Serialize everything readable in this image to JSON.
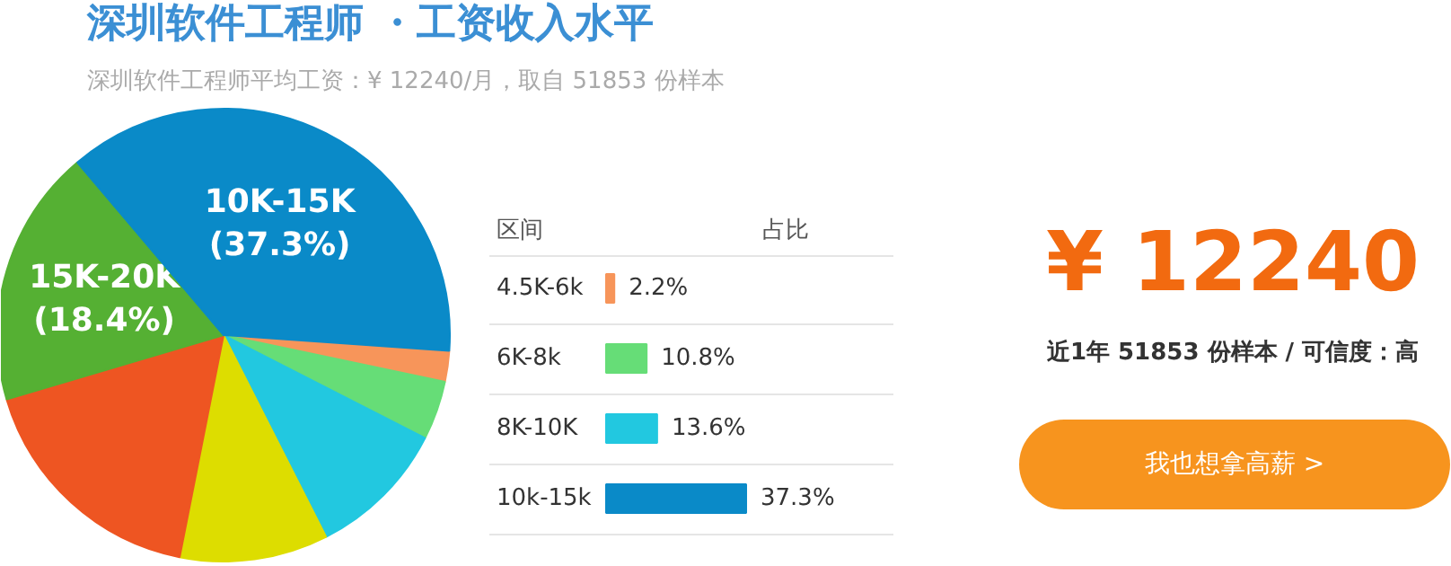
{
  "chart_data": [
    {
      "type": "pie",
      "title": "深圳软件工程师 ・工资收入水平",
      "subtitle": "深圳软件工程师平均工资：¥ 12240/月，取自 51853 份样本",
      "categories": [
        null,
        null,
        null,
        null,
        null,
        "15K-20K",
        "10K-15K"
      ],
      "values": [
        2.2,
        4.2,
        10.0,
        10.6,
        17.3,
        18.4,
        37.3
      ],
      "colors": [
        "#f7955a",
        "#66dd77",
        "#22c8e0",
        "#dddd00",
        "#ee5522",
        "#55b033",
        "#0a8ac8"
      ],
      "value_labels": [
        null,
        null,
        null,
        null,
        null,
        "(18.4%)",
        "(37.3%)"
      ]
    },
    {
      "type": "bar",
      "orientation": "horizontal",
      "categories": [
        "4.5K-6k",
        "6K-8k",
        "8K-10K",
        "10k-15k"
      ],
      "values": [
        2.2,
        10.8,
        13.6,
        37.3
      ],
      "colors": [
        "#f7955a",
        "#66dd77",
        "#22c8e0",
        "#0a8ac8"
      ],
      "value_labels": [
        "2.2%",
        "10.8%",
        "13.6%",
        "37.3%"
      ],
      "annotations": [
        "区间",
        "占比"
      ]
    },
    {
      "type": "other",
      "annotations": [
        "¥ 12240",
        "近1年 51853 份样本 / 可信度：高",
        "我也想拿高薪 >"
      ]
    }
  ]
}
